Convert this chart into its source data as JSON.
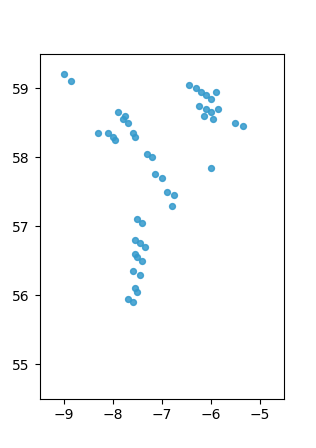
{
  "map_extent": [
    -9.5,
    -4.5,
    54.5,
    59.5
  ],
  "land_color": "#c8c8c8",
  "ocean_color": "#ffffff",
  "border_color": "#aaaaaa",
  "point_color": "#3399cc",
  "point_size": 18,
  "point_alpha": 0.85,
  "sightings_lon": [
    -9.0,
    -8.85,
    -7.9,
    -7.75,
    -7.8,
    -7.7,
    -8.3,
    -8.1,
    -8.0,
    -7.95,
    -7.6,
    -7.55,
    -7.3,
    -7.2,
    -7.15,
    -7.0,
    -6.9,
    -6.75,
    -6.8,
    -7.5,
    -7.4,
    -7.55,
    -7.45,
    -7.35,
    -7.55,
    -7.5,
    -7.4,
    -7.6,
    -7.45,
    -7.55,
    -7.5,
    -7.7,
    -7.6,
    -6.45,
    -6.3,
    -6.2,
    -6.1,
    -6.0,
    -5.9,
    -6.25,
    -6.1,
    -6.0,
    -5.85,
    -6.15,
    -5.95,
    -5.5,
    -5.35,
    -6.0
  ],
  "sightings_lat": [
    59.2,
    59.1,
    58.65,
    58.6,
    58.55,
    58.5,
    58.35,
    58.35,
    58.3,
    58.25,
    58.35,
    58.3,
    58.05,
    58.0,
    57.75,
    57.7,
    57.5,
    57.45,
    57.3,
    57.1,
    57.05,
    56.8,
    56.75,
    56.7,
    56.6,
    56.55,
    56.5,
    56.35,
    56.3,
    56.1,
    56.05,
    55.95,
    55.9,
    59.05,
    59.0,
    58.95,
    58.9,
    58.85,
    58.95,
    58.75,
    58.7,
    58.65,
    58.7,
    58.6,
    58.55,
    58.5,
    58.45,
    57.85
  ],
  "figsize": [
    3.16,
    4.48
  ],
  "dpi": 100
}
